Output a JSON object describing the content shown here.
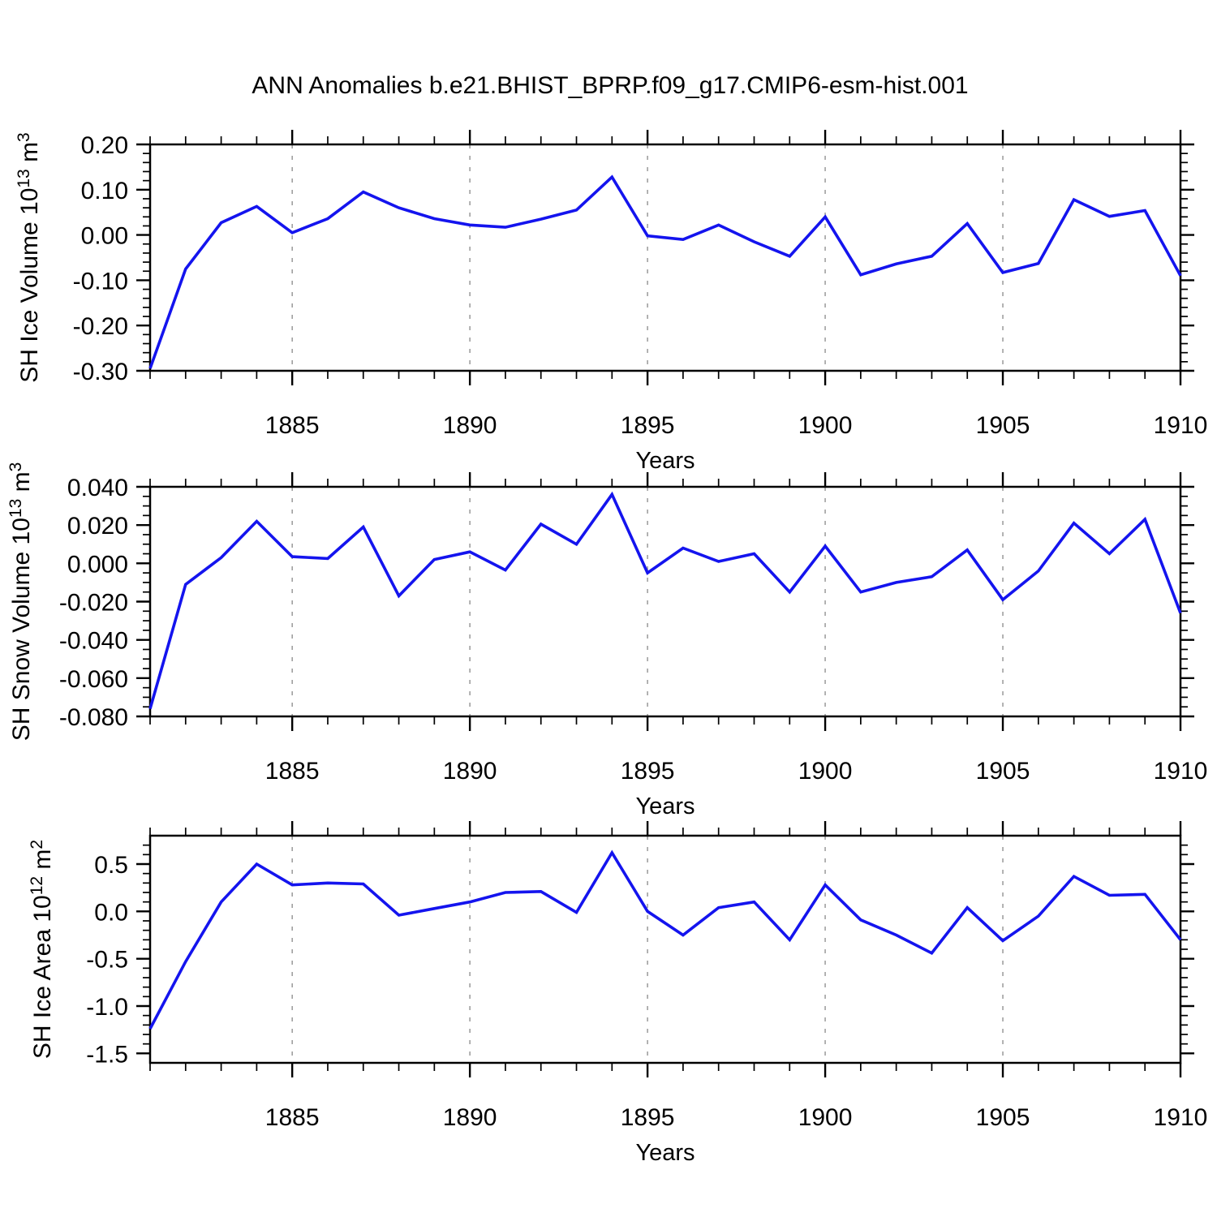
{
  "title": "ANN Anomalies b.e21.BHIST_BPRP.f09_g17.CMIP6-esm-hist.001",
  "colors": {
    "line": "#1414ee",
    "grid": "#999999",
    "axis": "#000000",
    "background": "#ffffff"
  },
  "x_axis": {
    "label": "Years",
    "start": 1881,
    "end": 1910,
    "major_ticks": [
      1885,
      1890,
      1895,
      1900,
      1905,
      1910
    ],
    "grid_years": [
      1885,
      1890,
      1895,
      1900,
      1905
    ],
    "years": [
      1881,
      1882,
      1883,
      1884,
      1885,
      1886,
      1887,
      1888,
      1889,
      1890,
      1891,
      1892,
      1893,
      1894,
      1895,
      1896,
      1897,
      1898,
      1899,
      1900,
      1901,
      1902,
      1903,
      1904,
      1905,
      1906,
      1907,
      1908,
      1909,
      1910
    ]
  },
  "chart_data": [
    {
      "type": "line",
      "name": "sh-ice-volume",
      "ylabel": "SH Ice Volume 10¹³ m³",
      "ylabel_segments": [
        {
          "text": "SH Ice Volume 10"
        },
        {
          "text": "13",
          "super": true
        },
        {
          "text": " m"
        },
        {
          "text": "3",
          "super": true
        }
      ],
      "ylim": [
        -0.3,
        0.2
      ],
      "ytick_labels": [
        "0.20",
        "0.10",
        "0.00",
        "-0.10",
        "-0.20",
        "-0.30"
      ],
      "ytick_values": [
        0.2,
        0.1,
        0.0,
        -0.1,
        -0.2,
        -0.3
      ],
      "yminor_step": 0.02,
      "values": [
        -0.295,
        -0.075,
        0.027,
        0.063,
        0.005,
        0.036,
        0.095,
        0.06,
        0.036,
        0.022,
        0.017,
        0.035,
        0.055,
        0.128,
        -0.002,
        -0.01,
        0.022,
        -0.015,
        -0.047,
        0.04,
        -0.088,
        -0.064,
        -0.047,
        0.025,
        -0.083,
        -0.063,
        0.078,
        0.041,
        0.054,
        -0.09
      ]
    },
    {
      "type": "line",
      "name": "sh-snow-volume",
      "ylabel": "SH Snow Volume 10¹³ m³",
      "ylabel_segments": [
        {
          "text": "SH Snow Volume 10"
        },
        {
          "text": "13",
          "super": true
        },
        {
          "text": " m"
        },
        {
          "text": "3",
          "super": true
        }
      ],
      "ylim": [
        -0.08,
        0.04
      ],
      "ytick_labels": [
        "0.040",
        "0.020",
        "0.000",
        "-0.020",
        "-0.040",
        "-0.060",
        "-0.080"
      ],
      "ytick_values": [
        0.04,
        0.02,
        0.0,
        -0.02,
        -0.04,
        -0.06,
        -0.08
      ],
      "yminor_step": 0.005,
      "values": [
        -0.076,
        -0.011,
        0.003,
        0.022,
        0.0035,
        0.0025,
        0.019,
        -0.017,
        0.002,
        0.006,
        -0.0035,
        0.0205,
        0.01,
        0.036,
        -0.005,
        0.008,
        0.001,
        0.005,
        -0.015,
        0.009,
        -0.015,
        -0.01,
        -0.007,
        0.007,
        -0.019,
        -0.004,
        0.021,
        0.005,
        0.023,
        -0.026
      ]
    },
    {
      "type": "line",
      "name": "sh-ice-area",
      "ylabel": "SH Ice Area 10¹² m²",
      "ylabel_segments": [
        {
          "text": "SH Ice Area 10"
        },
        {
          "text": "12",
          "super": true
        },
        {
          "text": " m"
        },
        {
          "text": "2",
          "super": true
        }
      ],
      "ylim": [
        -1.6,
        0.8
      ],
      "ytick_labels": [
        "0.5",
        "0.0",
        "-0.5",
        "-1.0",
        "-1.5"
      ],
      "ytick_values": [
        0.5,
        0.0,
        -0.5,
        -1.0,
        -1.5
      ],
      "yminor_step": 0.1,
      "values": [
        -1.24,
        -0.53,
        0.1,
        0.5,
        0.28,
        0.3,
        0.29,
        -0.04,
        0.03,
        0.1,
        0.2,
        0.21,
        -0.01,
        0.62,
        0.0,
        -0.25,
        0.04,
        0.1,
        -0.3,
        0.28,
        -0.09,
        -0.25,
        -0.44,
        0.04,
        -0.31,
        -0.05,
        0.37,
        0.17,
        0.18,
        -0.3
      ]
    }
  ]
}
